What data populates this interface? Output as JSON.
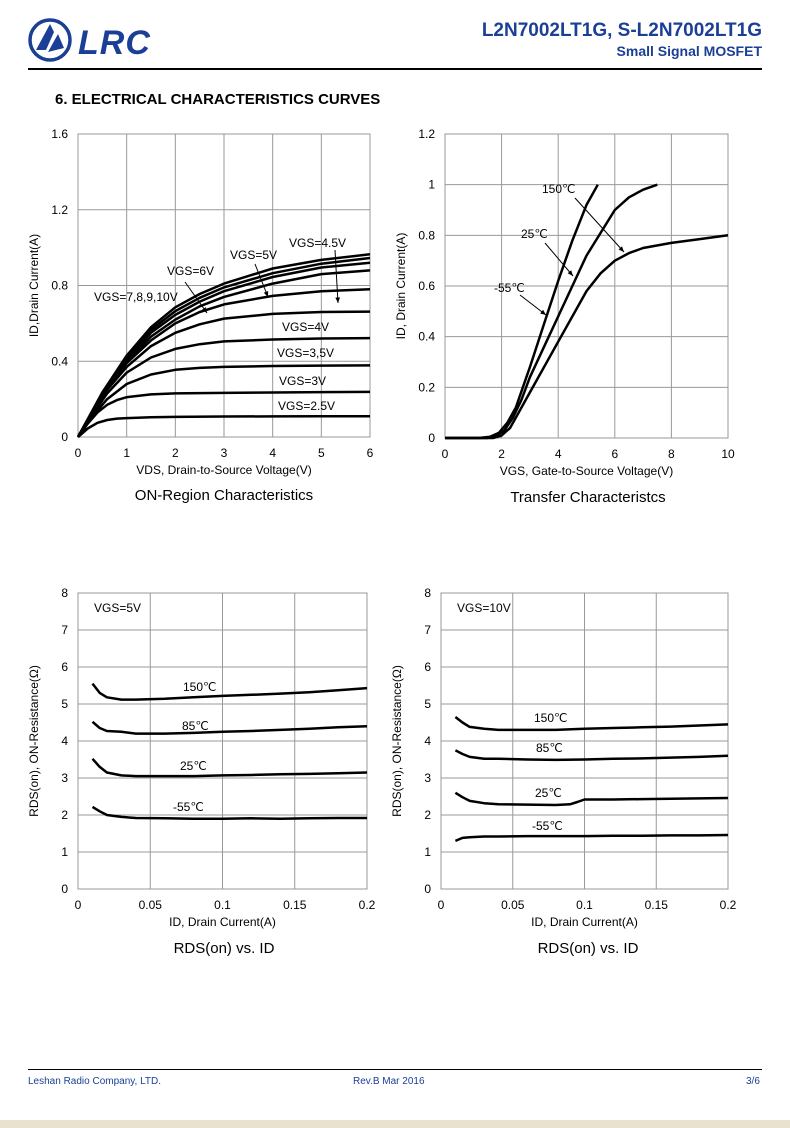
{
  "header": {
    "logo_text": "LRC",
    "part_number": "L2N7002LT1G, S-L2N7002LT1G",
    "subtitle": "Small Signal MOSFET",
    "brand_color": "#1b3f96"
  },
  "section_title": "6. ELECTRICAL CHARACTERISTICS CURVES",
  "footer": {
    "company": "Leshan Radio Company, LTD.",
    "revision": "Rev.B   Mar 2016",
    "page": "3/6"
  },
  "chart_data": [
    {
      "type": "line",
      "caption": "ON-Region Characteristics",
      "xlabel": "VDS, Drain-to-Source Voltage(V)",
      "ylabel": "ID,Drain Current(A)",
      "xlim": [
        0,
        6
      ],
      "ylim": [
        0,
        1.6
      ],
      "xticks": [
        "0",
        "1",
        "2",
        "3",
        "4",
        "5",
        "6"
      ],
      "yticks": [
        "0",
        "0.4",
        "0.8",
        "1.2",
        "1.6"
      ],
      "grid": true,
      "series": [
        {
          "name": "VGS=2.5V",
          "x": [
            0,
            0.2,
            0.4,
            0.6,
            0.8,
            1,
            1.5,
            2,
            3,
            4,
            5,
            6
          ],
          "y": [
            0,
            0.045,
            0.075,
            0.09,
            0.097,
            0.1,
            0.104,
            0.106,
            0.108,
            0.109,
            0.11,
            0.11
          ]
        },
        {
          "name": "VGS=3V",
          "x": [
            0,
            0.2,
            0.4,
            0.6,
            0.8,
            1,
            1.5,
            2,
            3,
            4,
            5,
            6
          ],
          "y": [
            0,
            0.07,
            0.13,
            0.17,
            0.195,
            0.21,
            0.225,
            0.23,
            0.233,
            0.235,
            0.237,
            0.238
          ]
        },
        {
          "name": "VGS=3.5V",
          "x": [
            0,
            0.3,
            0.6,
            1,
            1.5,
            2,
            2.5,
            3,
            4,
            5,
            6
          ],
          "y": [
            0,
            0.11,
            0.2,
            0.28,
            0.33,
            0.355,
            0.365,
            0.37,
            0.375,
            0.377,
            0.378
          ]
        },
        {
          "name": "VGS=4V",
          "x": [
            0,
            0.3,
            0.6,
            1,
            1.5,
            2,
            2.5,
            3,
            4,
            5,
            6
          ],
          "y": [
            0,
            0.12,
            0.23,
            0.34,
            0.42,
            0.465,
            0.49,
            0.505,
            0.515,
            0.52,
            0.522
          ]
        },
        {
          "name": "",
          "x": [
            0,
            0.3,
            0.6,
            1,
            1.5,
            2,
            2.5,
            3,
            4,
            5,
            6
          ],
          "y": [
            0,
            0.13,
            0.25,
            0.37,
            0.48,
            0.55,
            0.595,
            0.625,
            0.65,
            0.66,
            0.662
          ]
        },
        {
          "name": "",
          "x": [
            0,
            0.3,
            0.6,
            1,
            1.5,
            2,
            2.5,
            3,
            4,
            5,
            6
          ],
          "y": [
            0,
            0.135,
            0.26,
            0.39,
            0.51,
            0.6,
            0.66,
            0.7,
            0.745,
            0.77,
            0.78
          ]
        },
        {
          "name": "VGS=4.5V",
          "x": [
            0,
            0.5,
            1,
            1.5,
            2,
            2.5,
            3,
            4,
            5,
            6
          ],
          "y": [
            0,
            0.22,
            0.4,
            0.53,
            0.62,
            0.69,
            0.74,
            0.81,
            0.86,
            0.88
          ]
        },
        {
          "name": "VGS=5V",
          "x": [
            0,
            0.5,
            1,
            1.5,
            2,
            2.5,
            3,
            4,
            5,
            6
          ],
          "y": [
            0,
            0.225,
            0.41,
            0.55,
            0.645,
            0.715,
            0.77,
            0.845,
            0.895,
            0.92
          ]
        },
        {
          "name": "VGS=6V",
          "x": [
            0,
            0.5,
            1,
            1.5,
            2,
            2.5,
            3,
            4,
            5,
            6
          ],
          "y": [
            0,
            0.23,
            0.42,
            0.565,
            0.665,
            0.735,
            0.79,
            0.865,
            0.915,
            0.945
          ]
        },
        {
          "name": "VGS=7,8,9,10V",
          "x": [
            0,
            0.5,
            1,
            1.5,
            2,
            2.5,
            3,
            4,
            5,
            6
          ],
          "y": [
            0,
            0.235,
            0.43,
            0.58,
            0.685,
            0.755,
            0.81,
            0.89,
            0.935,
            0.965
          ]
        }
      ],
      "annotations": [
        "VGS=4.5V",
        "VGS=5V",
        "VGS=6V",
        "VGS=7,8,9,10V",
        "VGS=4V",
        "VGS=3,5V",
        "VGS=3V",
        "VGS=2.5V"
      ]
    },
    {
      "type": "line",
      "caption": "Transfer Characteristcs",
      "xlabel": "VGS, Gate-to-Source Voltage(V)",
      "ylabel": "ID, Drain Current(A)",
      "xlim": [
        0,
        10
      ],
      "ylim": [
        0,
        1.2
      ],
      "xticks": [
        "0",
        "2",
        "4",
        "6",
        "8",
        "10"
      ],
      "yticks": [
        "0",
        "0.2",
        "0.4",
        "0.6",
        "0.8",
        "1",
        "1.2"
      ],
      "grid": true,
      "series": [
        {
          "name": "150℃",
          "x": [
            0,
            1.2,
            1.6,
            1.9,
            2.2,
            2.5,
            3,
            3.5,
            4,
            4.5,
            5,
            5.4
          ],
          "y": [
            0,
            0,
            0.005,
            0.02,
            0.06,
            0.12,
            0.28,
            0.45,
            0.62,
            0.78,
            0.92,
            1.0
          ]
        },
        {
          "name": "25℃",
          "x": [
            0,
            1.5,
            1.8,
            2.1,
            2.4,
            2.7,
            3,
            4,
            5,
            6,
            6.5,
            7,
            7.5
          ],
          "y": [
            0,
            0,
            0.008,
            0.03,
            0.08,
            0.15,
            0.24,
            0.48,
            0.72,
            0.9,
            0.95,
            0.98,
            1.0
          ]
        },
        {
          "name": "-55℃",
          "x": [
            0,
            1.7,
            2,
            2.3,
            2.6,
            3,
            4,
            5,
            5.5,
            6,
            6.5,
            7,
            8,
            9,
            10
          ],
          "y": [
            0,
            0,
            0.01,
            0.04,
            0.1,
            0.18,
            0.38,
            0.58,
            0.65,
            0.7,
            0.73,
            0.75,
            0.77,
            0.785,
            0.8
          ]
        }
      ],
      "annotations": [
        "150℃",
        "25℃",
        "-55℃"
      ]
    },
    {
      "type": "line",
      "caption": "RDS(on) vs.  ID",
      "xlabel": "ID, Drain Current(A)",
      "ylabel": "RDS(on), ON-Resistance(Ω)",
      "note": "VGS=5V",
      "xlim": [
        0,
        0.2
      ],
      "ylim": [
        0,
        8
      ],
      "xticks": [
        "0",
        "0.05",
        "0.1",
        "0.15",
        "0.2"
      ],
      "yticks": [
        "0",
        "1",
        "2",
        "3",
        "4",
        "5",
        "6",
        "7",
        "8"
      ],
      "grid": true,
      "series": [
        {
          "name": "150℃",
          "x": [
            0.01,
            0.015,
            0.02,
            0.03,
            0.04,
            0.06,
            0.08,
            0.1,
            0.12,
            0.14,
            0.16,
            0.18,
            0.2
          ],
          "y": [
            5.55,
            5.3,
            5.18,
            5.12,
            5.12,
            5.14,
            5.18,
            5.22,
            5.25,
            5.28,
            5.32,
            5.37,
            5.43
          ]
        },
        {
          "name": "85℃",
          "x": [
            0.01,
            0.015,
            0.02,
            0.03,
            0.04,
            0.06,
            0.08,
            0.1,
            0.12,
            0.14,
            0.16,
            0.18,
            0.2
          ],
          "y": [
            4.52,
            4.35,
            4.27,
            4.25,
            4.2,
            4.2,
            4.22,
            4.25,
            4.27,
            4.3,
            4.33,
            4.37,
            4.4
          ]
        },
        {
          "name": "25℃",
          "x": [
            0.01,
            0.015,
            0.02,
            0.03,
            0.04,
            0.06,
            0.08,
            0.1,
            0.12,
            0.14,
            0.16,
            0.18,
            0.2
          ],
          "y": [
            3.52,
            3.3,
            3.15,
            3.07,
            3.05,
            3.05,
            3.05,
            3.07,
            3.08,
            3.1,
            3.11,
            3.13,
            3.15
          ]
        },
        {
          "name": "-55℃",
          "x": [
            0.01,
            0.015,
            0.02,
            0.03,
            0.04,
            0.06,
            0.08,
            0.1,
            0.12,
            0.14,
            0.16,
            0.18,
            0.2
          ],
          "y": [
            2.22,
            2.1,
            2.0,
            1.95,
            1.92,
            1.91,
            1.9,
            1.9,
            1.91,
            1.9,
            1.91,
            1.92,
            1.92
          ]
        }
      ],
      "annotations": [
        "150℃",
        "85℃",
        "25℃",
        "-55℃"
      ]
    },
    {
      "type": "line",
      "caption": "RDS(on) vs.  ID",
      "xlabel": "ID, Drain Current(A)",
      "ylabel": "RDS(on), ON-Resistance(Ω)",
      "note": "VGS=10V",
      "xlim": [
        0,
        0.2
      ],
      "ylim": [
        0,
        8
      ],
      "xticks": [
        "0",
        "0.05",
        "0.1",
        "0.15",
        "0.2"
      ],
      "yticks": [
        "0",
        "1",
        "2",
        "3",
        "4",
        "5",
        "6",
        "7",
        "8"
      ],
      "grid": true,
      "series": [
        {
          "name": "150℃",
          "x": [
            0.01,
            0.015,
            0.02,
            0.03,
            0.04,
            0.06,
            0.08,
            0.1,
            0.12,
            0.14,
            0.16,
            0.18,
            0.2
          ],
          "y": [
            4.65,
            4.5,
            4.38,
            4.33,
            4.3,
            4.3,
            4.3,
            4.33,
            4.35,
            4.37,
            4.39,
            4.42,
            4.45
          ]
        },
        {
          "name": "85℃",
          "x": [
            0.01,
            0.015,
            0.02,
            0.03,
            0.04,
            0.06,
            0.08,
            0.1,
            0.12,
            0.14,
            0.16,
            0.18,
            0.2
          ],
          "y": [
            3.75,
            3.65,
            3.57,
            3.52,
            3.52,
            3.5,
            3.49,
            3.5,
            3.52,
            3.53,
            3.55,
            3.57,
            3.6
          ]
        },
        {
          "name": "25℃",
          "x": [
            0.01,
            0.015,
            0.02,
            0.03,
            0.04,
            0.06,
            0.08,
            0.09,
            0.095,
            0.1,
            0.12,
            0.14,
            0.16,
            0.18,
            0.2
          ],
          "y": [
            2.6,
            2.48,
            2.38,
            2.32,
            2.29,
            2.28,
            2.27,
            2.29,
            2.35,
            2.42,
            2.42,
            2.43,
            2.44,
            2.45,
            2.46
          ]
        },
        {
          "name": "-55℃",
          "x": [
            0.01,
            0.015,
            0.02,
            0.03,
            0.04,
            0.06,
            0.08,
            0.1,
            0.12,
            0.14,
            0.16,
            0.18,
            0.2
          ],
          "y": [
            1.3,
            1.38,
            1.4,
            1.42,
            1.42,
            1.43,
            1.43,
            1.43,
            1.44,
            1.44,
            1.45,
            1.45,
            1.46
          ]
        }
      ],
      "annotations": [
        "150℃",
        "85℃",
        "25℃",
        "-55℃"
      ]
    }
  ]
}
